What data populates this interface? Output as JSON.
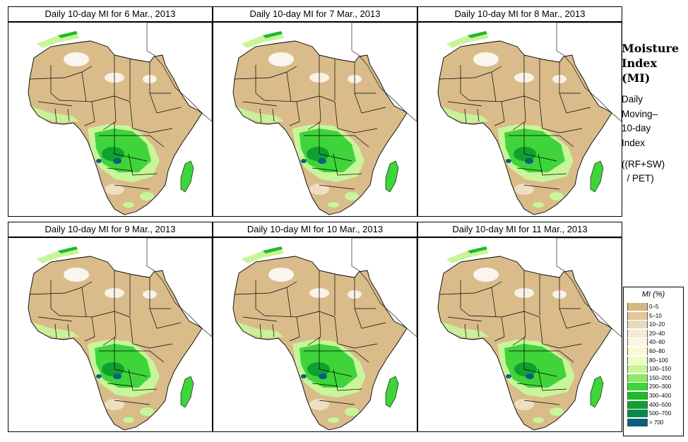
{
  "panels": [
    {
      "title": "Daily 10-day MI for  6 Mar., 2013"
    },
    {
      "title": "Daily 10-day MI for  7 Mar., 2013"
    },
    {
      "title": "Daily 10-day MI for  8 Mar., 2013"
    },
    {
      "title": "Daily 10-day MI for  9 Mar., 2013"
    },
    {
      "title": "Daily 10-day MI for  10 Mar., 2013"
    },
    {
      "title": "Daily 10-day MI for  11 Mar., 2013"
    }
  ],
  "side": {
    "title_lines": [
      "Moisture",
      "Index",
      "(MI)"
    ],
    "subtitle_lines": [
      "Daily",
      "Moving–",
      "10-day",
      "Index"
    ],
    "formula_lines": [
      "((RF+SW)",
      "  / PET)"
    ]
  },
  "legend": {
    "title": "MI (%)",
    "classes": [
      {
        "label": "0–5",
        "color": "#d5b783"
      },
      {
        "label": "5–10",
        "color": "#e1c79b"
      },
      {
        "label": "10–20",
        "color": "#ead9b9"
      },
      {
        "label": "20–40",
        "color": "#f4ead6"
      },
      {
        "label": "40–60",
        "color": "#fbf6e3"
      },
      {
        "label": "60–80",
        "color": "#fafad2"
      },
      {
        "label": "80–100",
        "color": "#eefcc6"
      },
      {
        "label": "100–150",
        "color": "#c8f59a"
      },
      {
        "label": "150–200",
        "color": "#8fe86a"
      },
      {
        "label": "200–300",
        "color": "#3ed43a"
      },
      {
        "label": "300–400",
        "color": "#1fbb2a"
      },
      {
        "label": "400–500",
        "color": "#10a030"
      },
      {
        "label": "500–700",
        "color": "#0a8a4a"
      },
      {
        "label": "> 700",
        "color": "#0b5e7e"
      }
    ]
  },
  "colors": {
    "land": "#d9bc8a",
    "desert": "#ffffff",
    "sahel": "#c8f59a",
    "wet": "#3ed43a",
    "very_wet": "#0b5e7e",
    "border": "#000000"
  }
}
